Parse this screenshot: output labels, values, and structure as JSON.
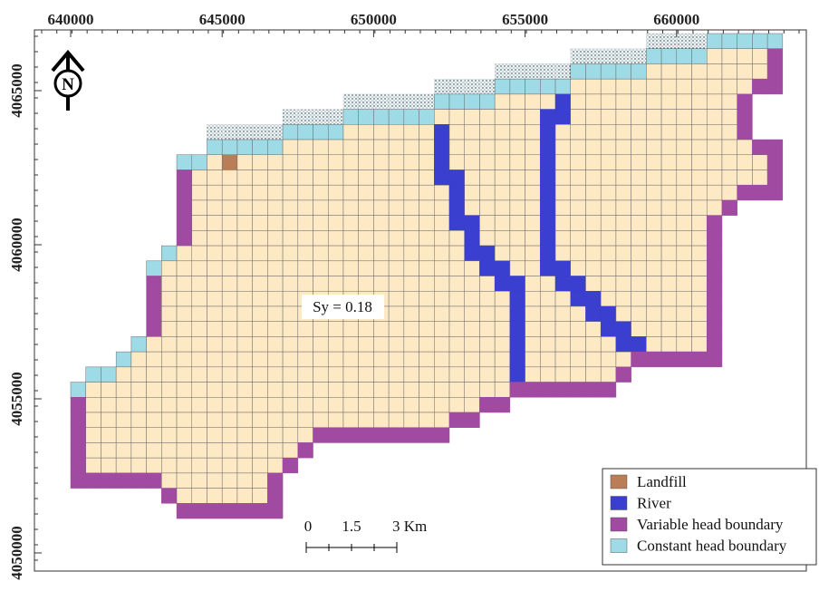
{
  "map": {
    "x_ticks": [
      640000,
      645000,
      650000,
      655000,
      660000
    ],
    "y_ticks": [
      4065000,
      4060000,
      4055000,
      4050000
    ],
    "north": "N",
    "annotation": "Sy = 0.18",
    "scale_bar": [
      "0",
      "1.5",
      "3 Km"
    ],
    "legend": [
      {
        "label": "Landfill",
        "color": "#b97d57"
      },
      {
        "label": "River",
        "color": "#3a3fcf"
      },
      {
        "label": "Variable head boundary",
        "color": "#a04aa2"
      },
      {
        "label": "Constant head boundary",
        "color": "#9fdbe6"
      }
    ],
    "cell_color": "#fde9c4"
  }
}
